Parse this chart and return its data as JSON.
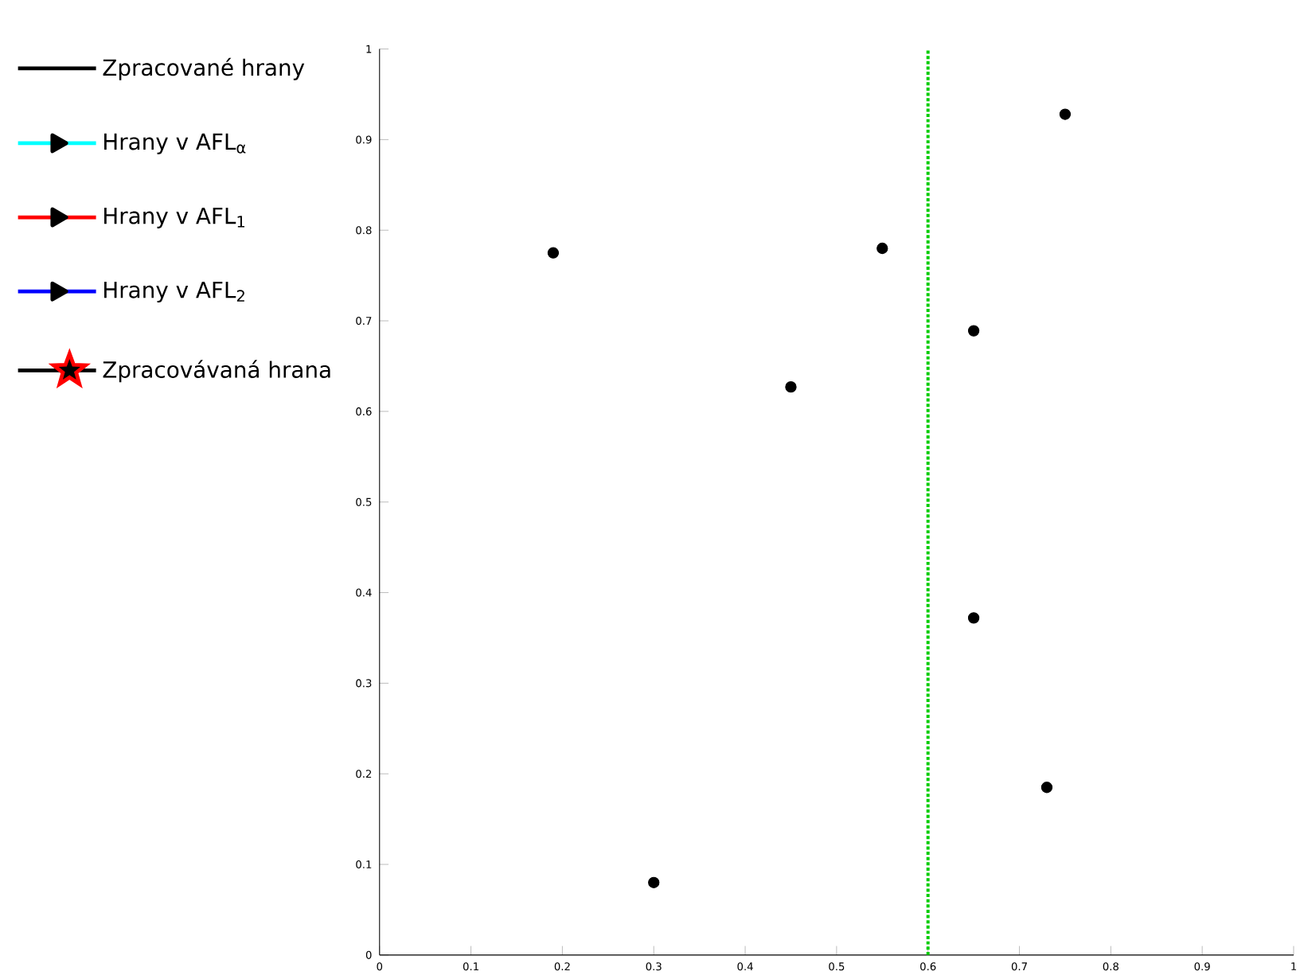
{
  "chart_data": {
    "type": "scatter",
    "legend": "left",
    "xlim": [
      0,
      1
    ],
    "ylim": [
      0,
      1
    ],
    "xticks": [
      0,
      0.1,
      0.2,
      0.3,
      0.4,
      0.5,
      0.6,
      0.7,
      0.8,
      0.9,
      1
    ],
    "yticks": [
      0,
      0.1,
      0.2,
      0.3,
      0.4,
      0.5,
      0.6,
      0.7,
      0.8,
      0.9,
      1
    ],
    "series": [
      {
        "name": "Zpracované hrany",
        "type": "line",
        "color": "#000000"
      },
      {
        "name": "Hrany v AFL$_{α}$",
        "type": "line",
        "marker": "triangle",
        "color": "#00ffff"
      },
      {
        "name": "Hrany v AFL$_{1}$",
        "type": "line",
        "marker": "triangle",
        "color": "#ff0000"
      },
      {
        "name": "Hrany v AFL$_{2}$",
        "type": "line",
        "marker": "triangle",
        "color": "#0000ff"
      },
      {
        "name": "Zpracovávaná hrana",
        "type": "scatter",
        "marker": "star",
        "color": "#000000"
      },
      {
        "marker": "circle",
        "color": "#000000",
        "x": [
          0.19,
          0.3,
          0.45,
          0.55,
          0.65,
          0.65,
          0.73,
          0.75
        ],
        "values": [
          0.775,
          0.08,
          0.627,
          0.78,
          0.689,
          0.372,
          0.185,
          0.928
        ]
      }
    ],
    "ref_lines": [
      {
        "axis": "x",
        "value": 0.6,
        "color": "#00cc00",
        "line_style": "dotted"
      }
    ]
  }
}
